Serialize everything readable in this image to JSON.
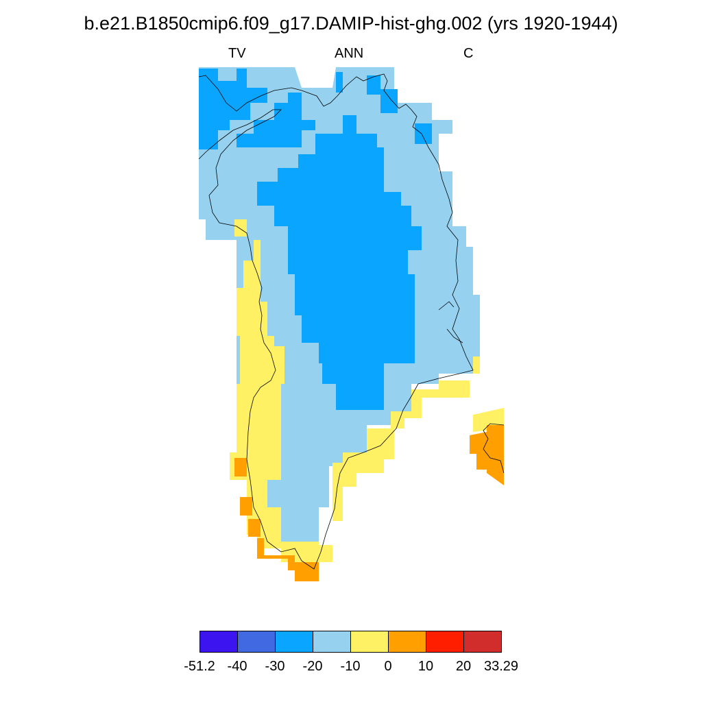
{
  "title": "b.e21.B1850cmip6.f09_g17.DAMIP-hist-ghg.002 (yrs 1920-1944)",
  "labels": {
    "left": "TV",
    "center": "ANN",
    "right": "C"
  },
  "colorbar": {
    "colors": [
      "#3c14f0",
      "#4169e1",
      "#0aa5ff",
      "#96d2f0",
      "#fff064",
      "#ffa000",
      "#ff1e00",
      "#d22d2d"
    ],
    "tick_labels": [
      "-51.2",
      "-40",
      "-30",
      "-20",
      "-10",
      "0",
      "10",
      "20",
      "33.29"
    ]
  },
  "map_colors": {
    "deep_blue": "#0aa5ff",
    "light_blue": "#96d2f0",
    "yellow": "#fff064",
    "orange": "#ffa000"
  }
}
